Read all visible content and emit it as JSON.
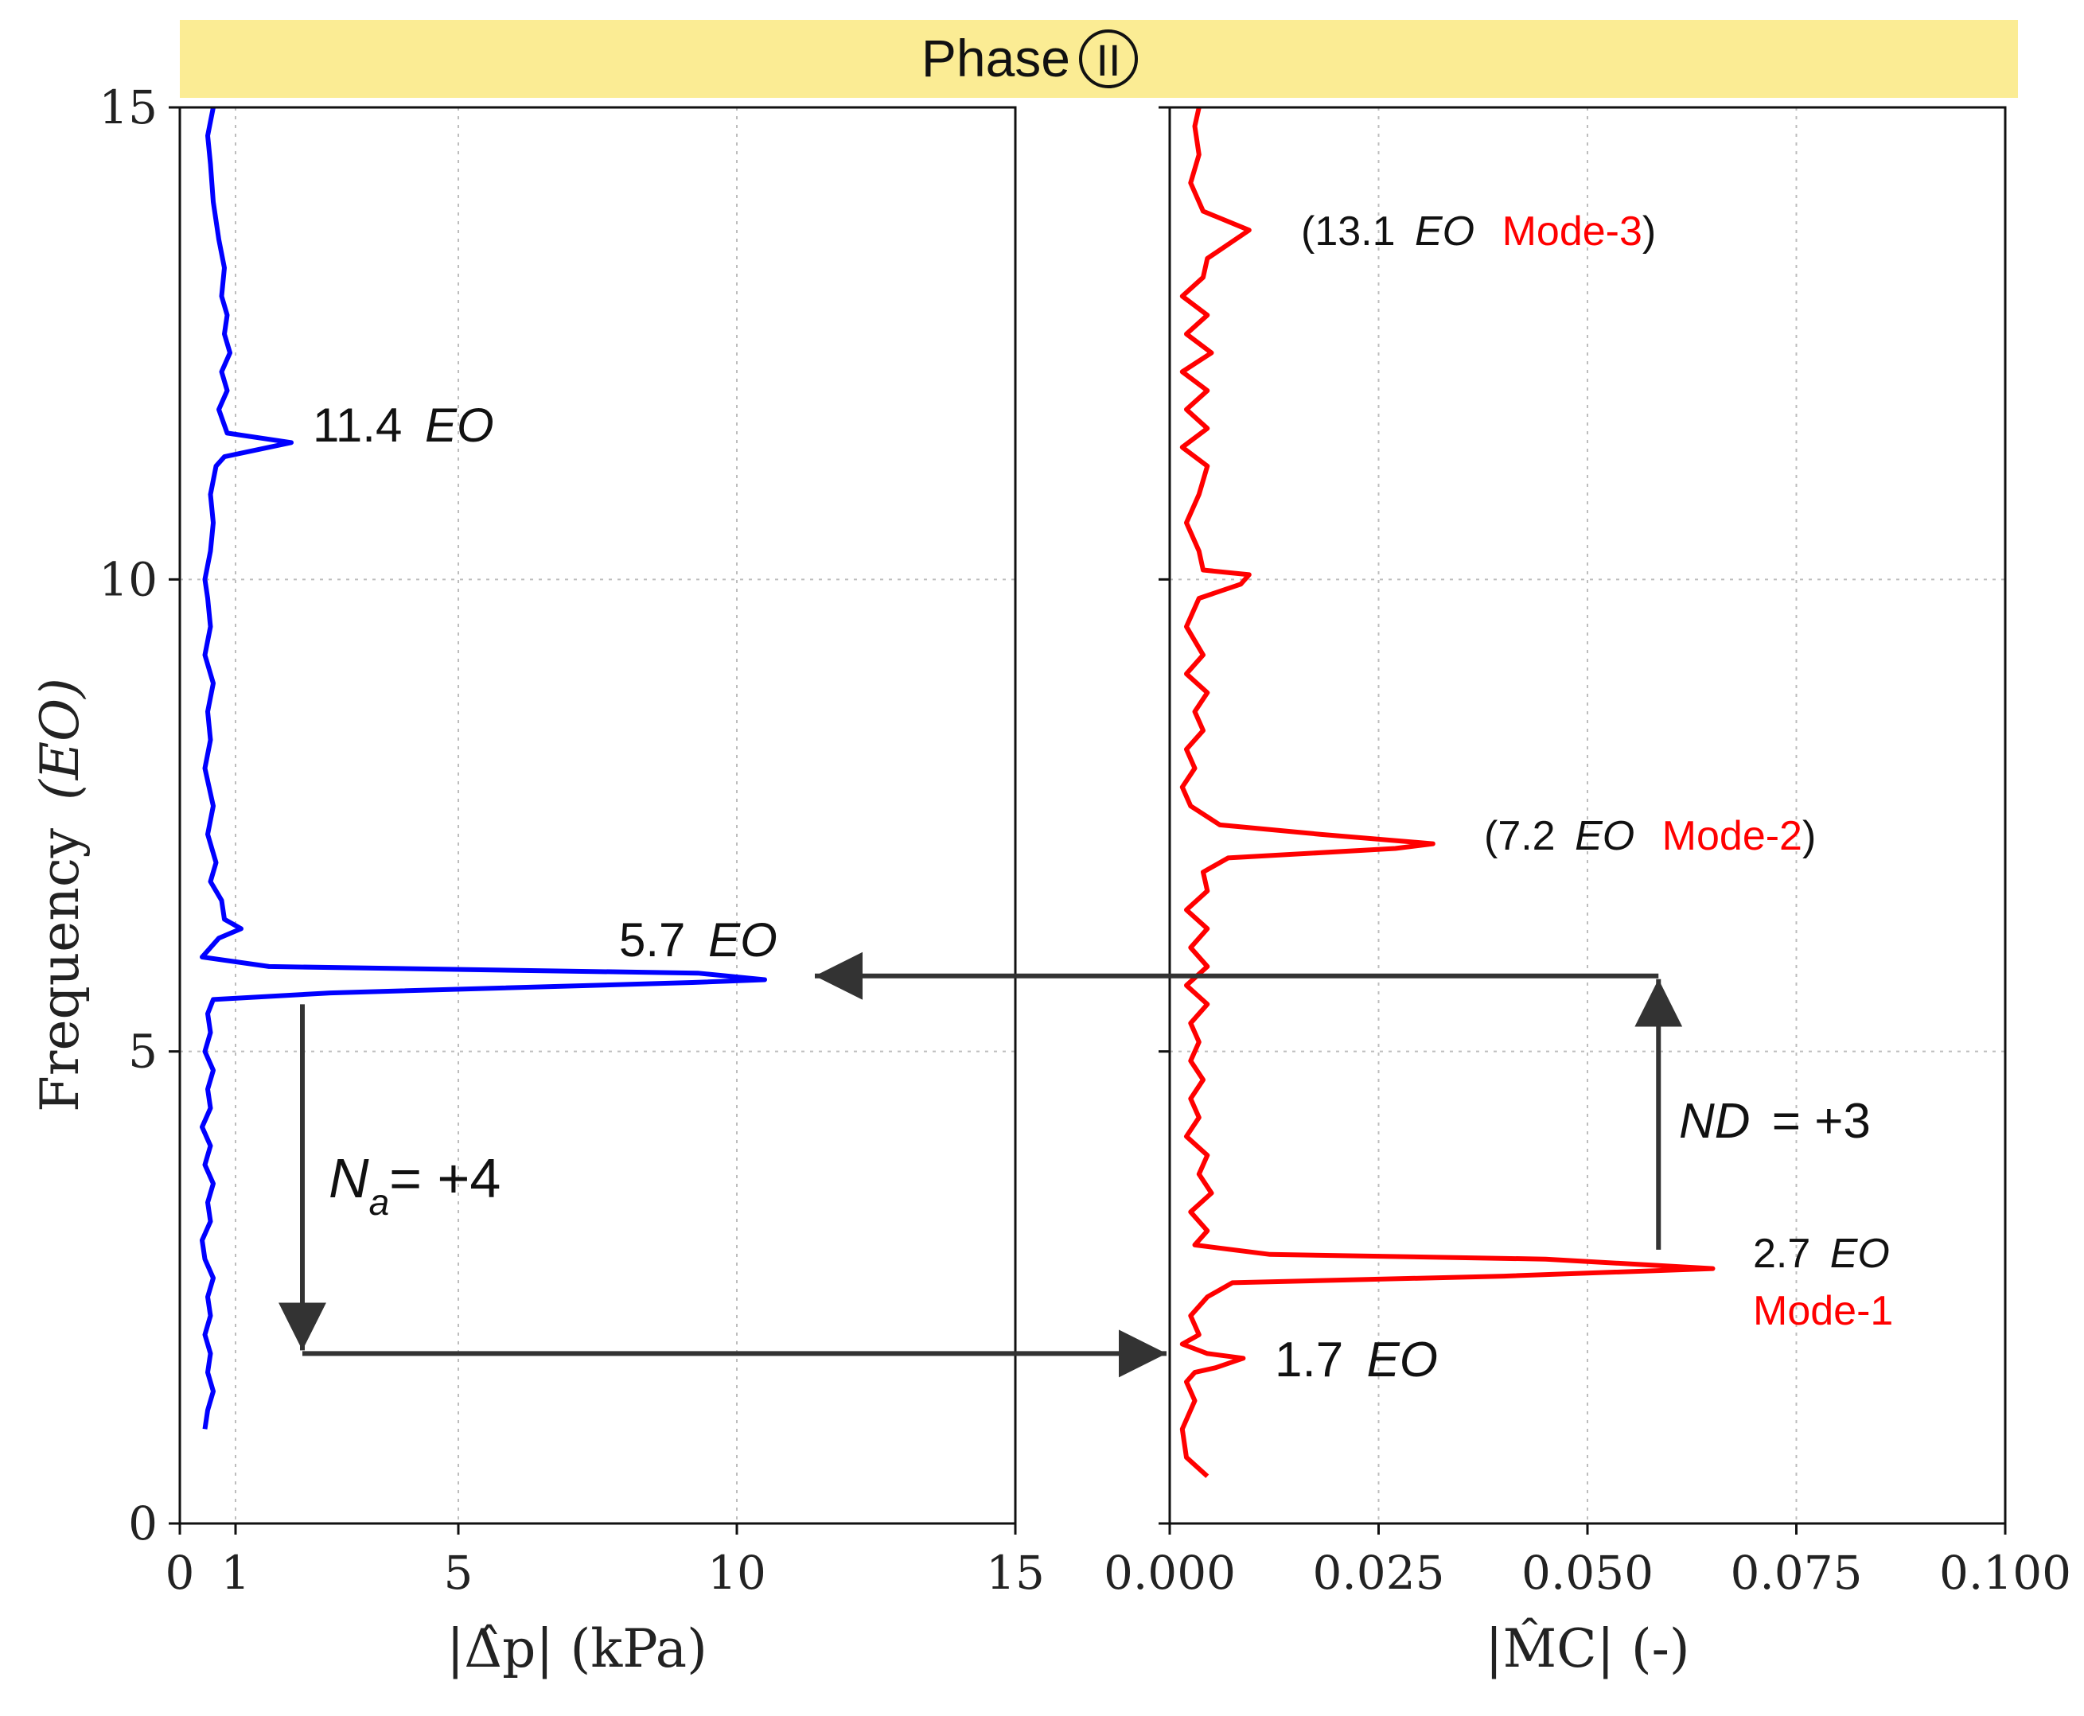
{
  "banner": {
    "label": "Phase",
    "numeral": "II",
    "color": "#fbec94"
  },
  "y_axis": {
    "label": "Frequency",
    "unit_label": "(EO)",
    "range": [
      0,
      15
    ],
    "ticks": [
      0,
      5,
      10,
      15
    ],
    "tick_labels": [
      "0",
      "5",
      "10",
      "15"
    ],
    "gridlines": [
      5,
      10
    ]
  },
  "chart_data": [
    {
      "type": "line",
      "name": "pressure-spectrum",
      "color": "#0000ff",
      "xlabel": "|Δ̂p| (kPa)",
      "xlim": [
        0,
        15
      ],
      "xticks": [
        0,
        1,
        5,
        10,
        15
      ],
      "xtick_labels": [
        "0",
        "1",
        "5",
        "10",
        "15"
      ],
      "xgrid": [
        1,
        5,
        10
      ],
      "ylim": [
        0,
        15
      ],
      "points": [
        [
          0.45,
          1.0
        ],
        [
          0.5,
          1.2
        ],
        [
          0.6,
          1.4
        ],
        [
          0.5,
          1.6
        ],
        [
          0.55,
          1.8
        ],
        [
          0.45,
          2.0
        ],
        [
          0.55,
          2.2
        ],
        [
          0.5,
          2.4
        ],
        [
          0.6,
          2.6
        ],
        [
          0.45,
          2.8
        ],
        [
          0.4,
          3.0
        ],
        [
          0.55,
          3.2
        ],
        [
          0.5,
          3.4
        ],
        [
          0.6,
          3.6
        ],
        [
          0.45,
          3.8
        ],
        [
          0.55,
          4.0
        ],
        [
          0.4,
          4.2
        ],
        [
          0.55,
          4.4
        ],
        [
          0.5,
          4.6
        ],
        [
          0.6,
          4.8
        ],
        [
          0.45,
          5.0
        ],
        [
          0.55,
          5.2
        ],
        [
          0.5,
          5.4
        ],
        [
          0.6,
          5.55
        ],
        [
          2.7,
          5.62
        ],
        [
          9.2,
          5.73
        ],
        [
          10.5,
          5.76
        ],
        [
          9.3,
          5.83
        ],
        [
          1.6,
          5.9
        ],
        [
          0.4,
          6.0
        ],
        [
          0.7,
          6.2
        ],
        [
          1.1,
          6.3
        ],
        [
          0.8,
          6.4
        ],
        [
          0.75,
          6.6
        ],
        [
          0.55,
          6.8
        ],
        [
          0.65,
          7.0
        ],
        [
          0.5,
          7.3
        ],
        [
          0.6,
          7.6
        ],
        [
          0.45,
          8.0
        ],
        [
          0.55,
          8.3
        ],
        [
          0.5,
          8.6
        ],
        [
          0.6,
          8.9
        ],
        [
          0.45,
          9.2
        ],
        [
          0.55,
          9.5
        ],
        [
          0.5,
          9.8
        ],
        [
          0.45,
          10.0
        ],
        [
          0.55,
          10.3
        ],
        [
          0.6,
          10.6
        ],
        [
          0.55,
          10.9
        ],
        [
          0.65,
          11.2
        ],
        [
          0.8,
          11.3
        ],
        [
          2.0,
          11.45
        ],
        [
          0.85,
          11.55
        ],
        [
          0.7,
          11.8
        ],
        [
          0.85,
          12.0
        ],
        [
          0.75,
          12.2
        ],
        [
          0.9,
          12.4
        ],
        [
          0.8,
          12.6
        ],
        [
          0.85,
          12.8
        ],
        [
          0.75,
          13.0
        ],
        [
          0.8,
          13.3
        ],
        [
          0.7,
          13.6
        ],
        [
          0.6,
          14.0
        ],
        [
          0.55,
          14.4
        ],
        [
          0.5,
          14.7
        ],
        [
          0.6,
          15.0
        ]
      ]
    },
    {
      "type": "line",
      "name": "modal-coefficient-spectrum",
      "color": "#ff0000",
      "xlabel": "|M̂C| (-)",
      "xlim": [
        0,
        0.1
      ],
      "xticks": [
        0,
        0.025,
        0.05,
        0.075,
        0.1
      ],
      "xtick_labels": [
        "0.000",
        "0.025",
        "0.050",
        "0.075",
        "0.100"
      ],
      "xgrid": [
        0.025,
        0.05,
        0.075
      ],
      "ylim": [
        0,
        15
      ],
      "points": [
        [
          0.0045,
          0.5
        ],
        [
          0.002,
          0.7
        ],
        [
          0.0015,
          1.0
        ],
        [
          0.003,
          1.3
        ],
        [
          0.002,
          1.5
        ],
        [
          0.003,
          1.6
        ],
        [
          0.0055,
          1.65
        ],
        [
          0.0088,
          1.75
        ],
        [
          0.0045,
          1.8
        ],
        [
          0.0015,
          1.9
        ],
        [
          0.0035,
          2.0
        ],
        [
          0.0025,
          2.2
        ],
        [
          0.0045,
          2.4
        ],
        [
          0.0075,
          2.55
        ],
        [
          0.04,
          2.62
        ],
        [
          0.065,
          2.7
        ],
        [
          0.045,
          2.8
        ],
        [
          0.012,
          2.85
        ],
        [
          0.003,
          2.95
        ],
        [
          0.0045,
          3.1
        ],
        [
          0.0025,
          3.3
        ],
        [
          0.005,
          3.5
        ],
        [
          0.0035,
          3.7
        ],
        [
          0.0045,
          3.9
        ],
        [
          0.002,
          4.1
        ],
        [
          0.0035,
          4.3
        ],
        [
          0.0025,
          4.5
        ],
        [
          0.004,
          4.7
        ],
        [
          0.0025,
          4.9
        ],
        [
          0.0035,
          5.1
        ],
        [
          0.0025,
          5.3
        ],
        [
          0.0045,
          5.5
        ],
        [
          0.002,
          5.7
        ],
        [
          0.0045,
          5.9
        ],
        [
          0.0025,
          6.1
        ],
        [
          0.0045,
          6.3
        ],
        [
          0.002,
          6.5
        ],
        [
          0.0045,
          6.7
        ],
        [
          0.004,
          6.9
        ],
        [
          0.007,
          7.05
        ],
        [
          0.027,
          7.15
        ],
        [
          0.0315,
          7.2
        ],
        [
          0.018,
          7.3
        ],
        [
          0.006,
          7.4
        ],
        [
          0.0025,
          7.6
        ],
        [
          0.0015,
          7.8
        ],
        [
          0.003,
          8.0
        ],
        [
          0.002,
          8.2
        ],
        [
          0.004,
          8.4
        ],
        [
          0.003,
          8.6
        ],
        [
          0.0045,
          8.8
        ],
        [
          0.002,
          9.0
        ],
        [
          0.004,
          9.2
        ],
        [
          0.002,
          9.5
        ],
        [
          0.0035,
          9.8
        ],
        [
          0.0085,
          9.95
        ],
        [
          0.0095,
          10.05
        ],
        [
          0.004,
          10.1
        ],
        [
          0.0035,
          10.3
        ],
        [
          0.002,
          10.6
        ],
        [
          0.0035,
          10.9
        ],
        [
          0.0045,
          11.2
        ],
        [
          0.0015,
          11.4
        ],
        [
          0.0045,
          11.6
        ],
        [
          0.002,
          11.8
        ],
        [
          0.0045,
          12.0
        ],
        [
          0.0015,
          12.2
        ],
        [
          0.005,
          12.4
        ],
        [
          0.002,
          12.6
        ],
        [
          0.0045,
          12.8
        ],
        [
          0.0015,
          13.0
        ],
        [
          0.004,
          13.2
        ],
        [
          0.0045,
          13.4
        ],
        [
          0.0095,
          13.7
        ],
        [
          0.004,
          13.9
        ],
        [
          0.0025,
          14.2
        ],
        [
          0.0035,
          14.5
        ],
        [
          0.003,
          14.8
        ],
        [
          0.0035,
          15.0
        ]
      ]
    }
  ],
  "annotations": {
    "left_peak_5_7": {
      "value": "5.7",
      "unit": "EO"
    },
    "left_peak_11_4": {
      "value": "11.4",
      "unit": "EO"
    },
    "na": {
      "symbol": "N",
      "subscript": "a",
      "value": "= +4"
    },
    "nd": {
      "symbol": "ND",
      "value": "= +3"
    },
    "peak_13_1": {
      "open": "(13.1",
      "unit": "EO",
      "mode": "Mode-3",
      "close": ")"
    },
    "peak_7_2": {
      "open": "(7.2",
      "unit": "EO",
      "mode": "Mode-2",
      "close": ")"
    },
    "peak_2_7": {
      "value": "2.7",
      "unit": "EO",
      "mode": "Mode-1"
    },
    "peak_1_7": {
      "value": "1.7",
      "unit": "EO"
    }
  },
  "arrows": {
    "na_arrow": {
      "from_eo": 5.5,
      "to_eo": 1.8
    },
    "bottom_arrow": {
      "eo": 1.8
    },
    "nd_arrow": {
      "from_eo": 2.9,
      "to_eo": 5.8
    },
    "top_arrow": {
      "eo": 5.8
    }
  },
  "colors": {
    "pressure": "#0000ff",
    "modal": "#ff0000",
    "arrow": "#333333"
  }
}
